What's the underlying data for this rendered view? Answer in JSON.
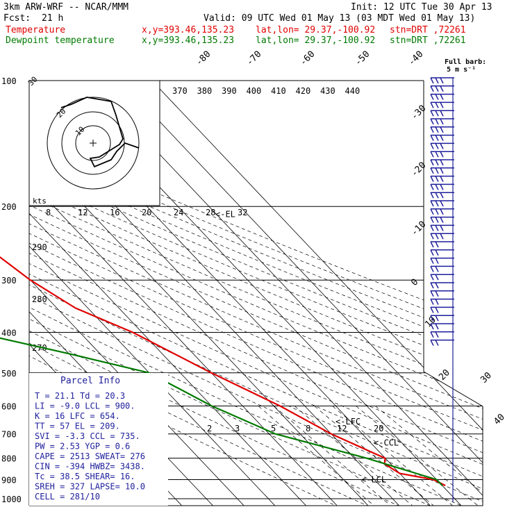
{
  "header": {
    "model": "3km ARW-WRF -- NCAR/MMM",
    "init": "Init: 12 UTC Tue 30 Apr 13",
    "fcst_label": "Fcst:",
    "fcst_value": "21 h",
    "valid": "Valid: 09 UTC Wed 01 May 13 (03 MDT Wed 01 May 13)",
    "temp_label": "Temperature",
    "dew_label": "Dewpoint temperature",
    "xy": "x,y=393.46,135.23",
    "latlon": "lat,lon= 29.37,-100.92",
    "stn": "stn=DRT ,72261",
    "barb_legend_1": "Full barb:",
    "barb_legend_2": "5 m s⁻¹"
  },
  "chart_data": {
    "type": "line",
    "xlabel": "",
    "ylabel": "",
    "pressure_levels": [
      100,
      200,
      300,
      400,
      500,
      600,
      700,
      800,
      900,
      1000
    ],
    "skewed_temp_labels": [
      "-80",
      "-70",
      "-60",
      "-50",
      "-40",
      "-30",
      "-20",
      "-10",
      "0",
      "10",
      "20",
      "30",
      "40"
    ],
    "theta_e_labels": [
      "370",
      "380",
      "390",
      "400",
      "410",
      "420",
      "430",
      "440"
    ],
    "mixing_ratio_labels": [
      "2",
      "3",
      "5",
      "8",
      "12",
      "20"
    ],
    "theta_labels": [
      "290",
      "280",
      "270"
    ],
    "series": [
      {
        "name": "Temperature",
        "color": "#e00000",
        "points": [
          [
            100,
            -72
          ],
          [
            150,
            -62
          ],
          [
            200,
            -55
          ],
          [
            250,
            -54
          ],
          [
            300,
            -50
          ],
          [
            350,
            -44
          ],
          [
            400,
            -33
          ],
          [
            500,
            -20
          ],
          [
            600,
            -8
          ],
          [
            700,
            0
          ],
          [
            780,
            8
          ],
          [
            800,
            10
          ],
          [
            825,
            8
          ],
          [
            870,
            10
          ],
          [
            900,
            19
          ],
          [
            930,
            21
          ]
        ]
      },
      {
        "name": "Dewpoint temperature",
        "color": "#007a00",
        "points": [
          [
            100,
            -102
          ],
          [
            150,
            -102
          ],
          [
            200,
            -89
          ],
          [
            250,
            -83
          ],
          [
            300,
            -78
          ],
          [
            350,
            -105
          ],
          [
            400,
            -84
          ],
          [
            450,
            -60
          ],
          [
            500,
            -40
          ],
          [
            600,
            -30
          ],
          [
            700,
            -18
          ],
          [
            800,
            4
          ],
          [
            900,
            20
          ],
          [
            930,
            20
          ]
        ]
      }
    ],
    "levels": [
      {
        "label": "<-LFC",
        "pressure": 654
      },
      {
        "label": "<-CCL",
        "pressure": 735
      },
      {
        "label": "<-LCL",
        "pressure": 900
      },
      {
        "label": "<-EL",
        "pressure": 209
      }
    ],
    "hodograph": {
      "axis_label": "kts",
      "ring_labels": [
        "30",
        "20",
        "10"
      ],
      "speed_labels": [
        "8",
        "12",
        "16",
        "20",
        "24",
        "28",
        "32"
      ]
    },
    "parcel_info": {
      "title": "Parcel Info",
      "rows": [
        "T   =   21.1  Td =  20.3",
        "LI  =   -9.0  LCL =  900.",
        "K   =     16  LFC =  654.",
        "TT  =     57  EL  =  209.",
        "SVI =   -3.3  CCL =  735.",
        "PW  =   2.53  YGP =   0.6",
        "CAPE =  2513  SWEAT=  276",
        "CIN  =  -394  HWBZ= 3438.",
        "Tc  =   38.5  SHEAR=  16.",
        "SREH =   327  LAPSE= 10.0",
        "CELL = 281/10"
      ]
    }
  }
}
